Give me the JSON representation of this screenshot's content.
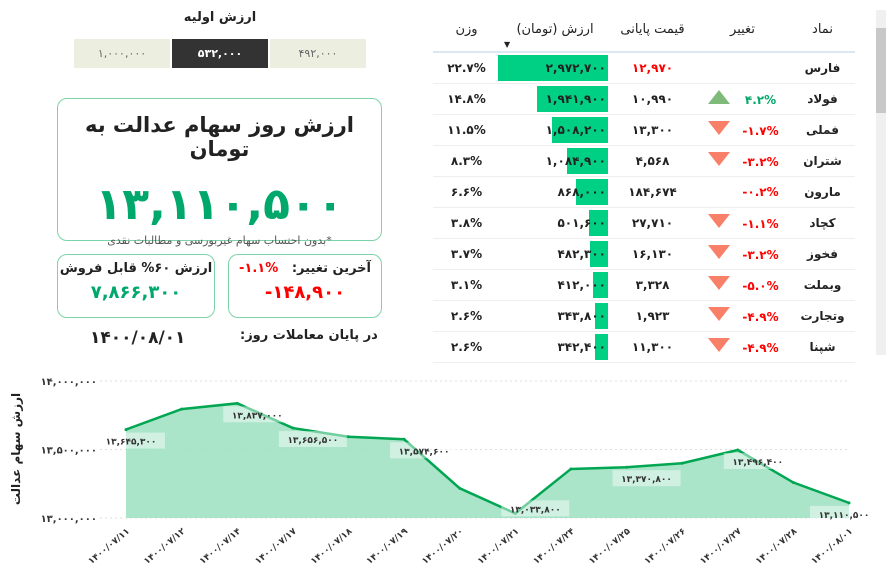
{
  "initial": {
    "title": "ارزش اولیه",
    "options": [
      "۱,۰۰۰,۰۰۰",
      "۵۳۲,۰۰۰",
      "۴۹۲,۰۰۰"
    ],
    "selected": 1
  },
  "main": {
    "title": "ارزش روز سهام عدالت به تومان",
    "value": "۱۳,۱۱۰,۵۰۰",
    "note": "*بدون احتساب سهام غیربورسی و مطالبات نقدی"
  },
  "change": {
    "label": "آخرین تغییر:",
    "percent": "-۱.۱%",
    "value": "-۱۴۸,۹۰۰"
  },
  "sellable": {
    "label": "ارزش ۶۰% قابل فروش",
    "value": "۷,۸۶۶,۳۰۰"
  },
  "date": {
    "label": "در پایان معاملات روز:",
    "value": "۱۴۰۰/۰۸/۰۱"
  },
  "table": {
    "headers": {
      "symbol": "نماد",
      "change": "تغییر",
      "price": "قیمت پایانی",
      "value": "ارزش (تومان)",
      "weight": "وزن"
    },
    "rows": [
      {
        "symbol": "فارس",
        "change": "",
        "trend": "none",
        "price": "۱۲,۹۷۰",
        "price_red": true,
        "value": "۲,۹۷۲,۷۰۰",
        "bar": 100,
        "weight": "۲۲.۷%"
      },
      {
        "symbol": "فولاد",
        "change": "۴.۲%",
        "trend": "up",
        "price": "۱۰,۹۹۰",
        "value": "۱,۹۴۱,۹۰۰",
        "bar": 65,
        "weight": "۱۴.۸%"
      },
      {
        "symbol": "فملی",
        "change": "-۱.۷%",
        "trend": "down",
        "price": "۱۳,۳۰۰",
        "value": "۱,۵۰۸,۲۰۰",
        "bar": 51,
        "weight": "۱۱.۵%"
      },
      {
        "symbol": "شتران",
        "change": "-۳.۲%",
        "trend": "down",
        "price": "۴,۵۶۸",
        "value": "۱,۰۸۴,۹۰۰",
        "bar": 37,
        "weight": "۸.۳%"
      },
      {
        "symbol": "مارون",
        "change": "-۰.۲%",
        "trend": "none",
        "price": "۱۸۴,۶۷۴",
        "value": "۸۶۸,۰۰۰",
        "bar": 29,
        "weight": "۶.۶%"
      },
      {
        "symbol": "کچاد",
        "change": "-۱.۱%",
        "trend": "down",
        "price": "۲۷,۷۱۰",
        "value": "۵۰۱,۶۰۰",
        "bar": 17,
        "weight": "۳.۸%"
      },
      {
        "symbol": "فخوز",
        "change": "-۳.۲%",
        "trend": "down",
        "price": "۱۶,۱۳۰",
        "value": "۴۸۲,۳۰۰",
        "bar": 16,
        "weight": "۳.۷%"
      },
      {
        "symbol": "وبملت",
        "change": "-۵.۰%",
        "trend": "down",
        "price": "۳,۳۲۸",
        "value": "۴۱۲,۰۰۰",
        "bar": 14,
        "weight": "۳.۱%"
      },
      {
        "symbol": "وتجارت",
        "change": "-۴.۹%",
        "trend": "down",
        "price": "۱,۹۲۳",
        "value": "۳۴۳,۸۰۰",
        "bar": 12,
        "weight": "۲.۶%"
      },
      {
        "symbol": "شپنا",
        "change": "-۴.۹%",
        "trend": "down",
        "price": "۱۱,۳۰۰",
        "value": "۳۴۲,۴۰۰",
        "bar": 12,
        "weight": "۲.۶%"
      }
    ]
  },
  "chart_data": {
    "type": "area",
    "ylabel": "ارزش سهام عدالت",
    "ylim": [
      13000000,
      14000000
    ],
    "yticks": [
      "۱۳,۰۰۰,۰۰۰",
      "۱۳,۵۰۰,۰۰۰",
      "۱۴,۰۰۰,۰۰۰"
    ],
    "ytick_values": [
      13000000,
      13500000,
      14000000
    ],
    "categories": [
      "۱۴۰۰/۰۷/۱۱",
      "۱۴۰۰/۰۷/۱۲",
      "۱۴۰۰/۰۷/۱۴",
      "۱۴۰۰/۰۷/۱۷",
      "۱۴۰۰/۰۷/۱۸",
      "۱۴۰۰/۰۷/۱۹",
      "۱۴۰۰/۰۷/۲۰",
      "۱۴۰۰/۰۷/۲۱",
      "۱۴۰۰/۰۷/۲۴",
      "۱۴۰۰/۰۷/۲۵",
      "۱۴۰۰/۰۷/۲۶",
      "۱۴۰۰/۰۷/۲۷",
      "۱۴۰۰/۰۷/۲۸",
      "۱۴۰۰/۰۸/۰۱"
    ],
    "values": [
      13645300,
      13795000,
      13837000,
      13656500,
      13593000,
      13574600,
      13217000,
      13033800,
      13358000,
      13370800,
      13400000,
      13496400,
      13259000,
      13110500
    ],
    "labels": [
      "۱۳,۶۴۵,۳۰۰",
      "",
      "۱۳,۸۳۷,۰۰۰",
      "۱۳,۶۵۶,۵۰۰",
      "",
      "۱۳,۵۷۴,۶۰۰",
      "",
      "۱۳,۰۳۳,۸۰۰",
      "",
      "۱۳,۳۷۰,۸۰۰",
      "",
      "۱۳,۴۹۶,۴۰۰",
      "",
      "۱۳,۱۱۰,۵۰۰"
    ],
    "colors": {
      "line": "#00a651",
      "fill": "#9bdfc0"
    }
  }
}
